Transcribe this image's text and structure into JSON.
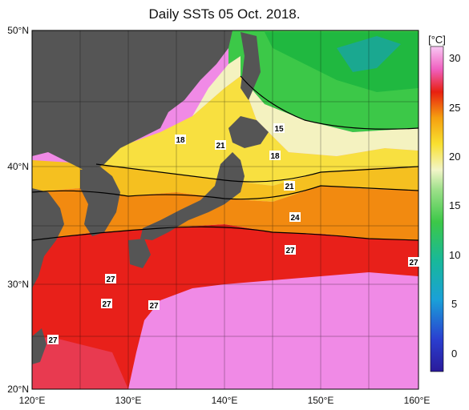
{
  "title": "Daily SSTs 05 Oct. 2018.",
  "latitude_labels": [
    "50°N",
    "40°N",
    "30°N",
    "20°N"
  ],
  "longitude_labels": [
    "120°E",
    "130°E",
    "140°E",
    "150°E",
    "160°E"
  ],
  "colorbar": {
    "unit": "[°C]",
    "ticks": [
      "30",
      "25",
      "20",
      "15",
      "10",
      "5",
      "0"
    ]
  },
  "isotherm_labels": [
    "18",
    "21",
    "15",
    "18",
    "21",
    "24",
    "27",
    "27",
    "27",
    "27",
    "27",
    "27"
  ],
  "colors": {
    "land": "#555555",
    "sea_cold": "#3cb44b",
    "sea_cool": "#f5f0b0",
    "sea_mild": "#f5d000",
    "sea_warm": "#f08c00",
    "sea_hot": "#e01a14",
    "sea_tropical": "#f08ae6"
  }
}
